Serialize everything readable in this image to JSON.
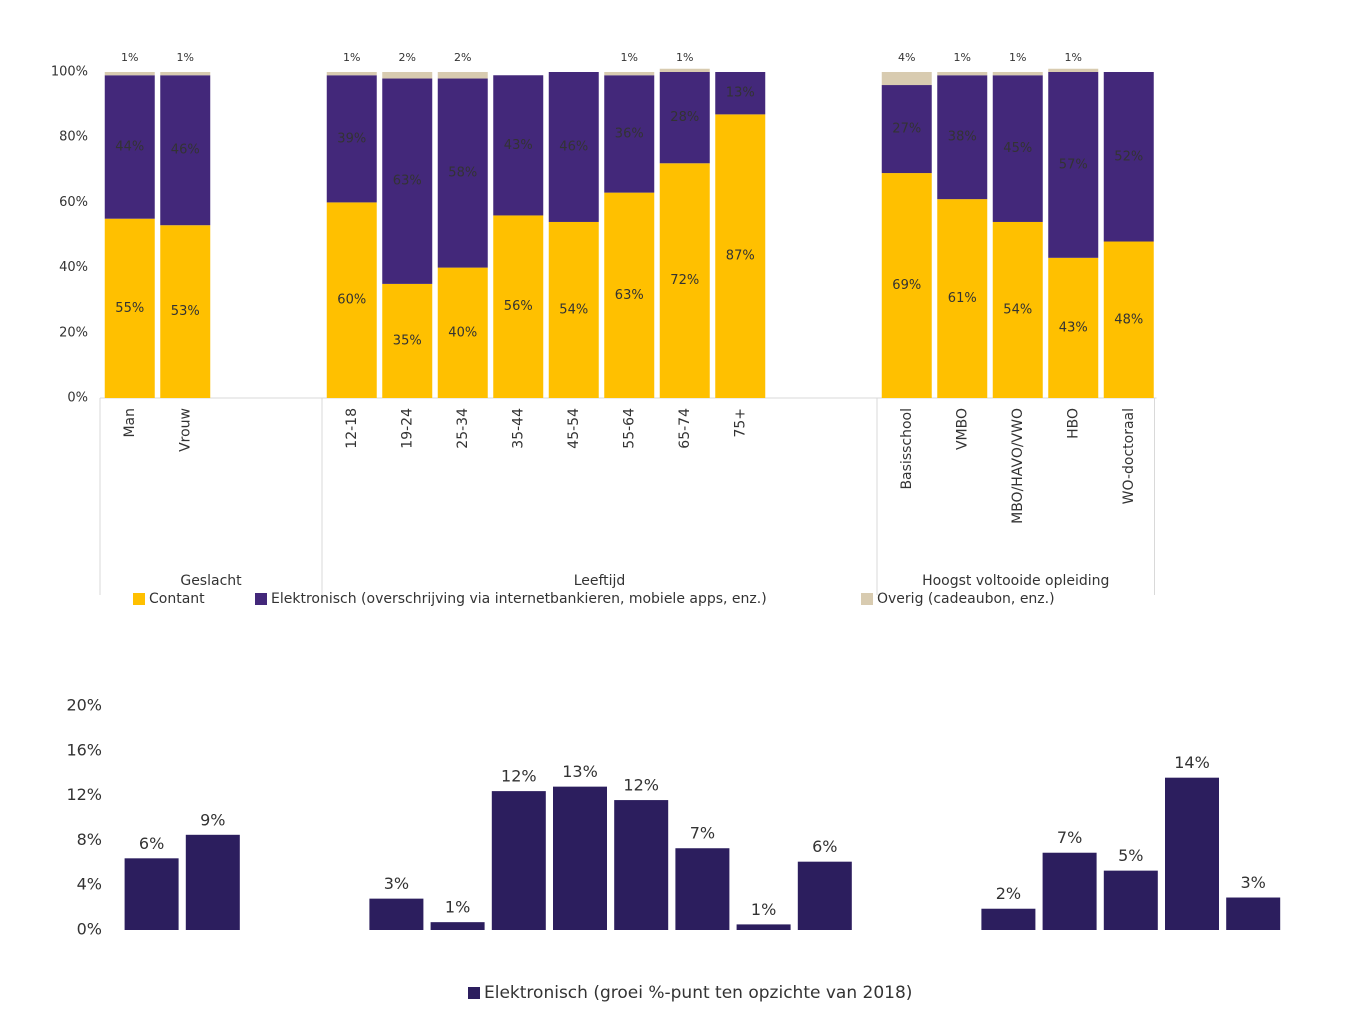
{
  "chart_data": [
    {
      "type": "bar",
      "stacked": true,
      "categories": [
        "Man",
        "Vrouw",
        null,
        null,
        "12-18",
        "19-24",
        "25-34",
        "35-44",
        "45-54",
        "55-64",
        "65-74",
        "75+",
        null,
        null,
        "Basisschool",
        "VMBO",
        "MBO/HAVO/VWO",
        "HBO",
        "WO-doctoraal"
      ],
      "groups": [
        "Geslacht",
        "Leeftijd",
        "Hoogst voltooide opleiding"
      ],
      "series": [
        {
          "name": "Contant",
          "color": "#ffc000",
          "values": [
            55,
            53,
            null,
            null,
            60,
            35,
            40,
            56,
            54,
            63,
            72,
            87,
            null,
            null,
            69,
            61,
            54,
            43,
            48
          ],
          "value_labels": [
            "55%",
            "53%",
            null,
            null,
            "60%",
            "35%",
            "40%",
            "56%",
            "54%",
            "63%",
            "72%",
            "87%",
            null,
            null,
            "69%",
            "61%",
            "54%",
            "43%",
            "48%"
          ]
        },
        {
          "name": "Elektronisch (overschrijving via internetbankieren, mobiele apps, enz.)",
          "color": "#43287a",
          "values": [
            44,
            46,
            null,
            null,
            39,
            63,
            58,
            43,
            46,
            36,
            28,
            13,
            null,
            null,
            27,
            38,
            45,
            57,
            52
          ],
          "value_labels": [
            "44%",
            "46%",
            null,
            null,
            "39%",
            "63%",
            "58%",
            "43%",
            "46%",
            "36%",
            "28%",
            "13%",
            null,
            null,
            "27%",
            "38%",
            "45%",
            "57%",
            "52%"
          ]
        },
        {
          "name": "Overig (cadeaubon, enz.)",
          "color": "#d8cbb0",
          "values": [
            1,
            1,
            null,
            null,
            1,
            2,
            2,
            null,
            null,
            1,
            1,
            null,
            null,
            null,
            4,
            1,
            1,
            1,
            null
          ],
          "value_labels": [
            "1%",
            "1%",
            null,
            null,
            "1%",
            "2%",
            "2%",
            null,
            null,
            "1%",
            "1%",
            null,
            null,
            null,
            "4%",
            "1%",
            "1%",
            "1%",
            null
          ]
        }
      ],
      "ylim": [
        0,
        100
      ],
      "yticks": [
        {
          "value": 0,
          "label": "0%"
        },
        {
          "value": 20,
          "label": "20%"
        },
        {
          "value": 40,
          "label": "40%"
        },
        {
          "value": 60,
          "label": "60%"
        },
        {
          "value": 80,
          "label": "80%"
        },
        {
          "value": 100,
          "label": "100%"
        }
      ],
      "legend": "bottom"
    },
    {
      "type": "bar",
      "stacked": false,
      "categories": [
        null,
        null,
        null,
        null,
        null,
        null,
        null,
        null,
        null,
        null,
        null,
        null,
        null,
        null,
        null,
        null,
        null,
        null,
        null
      ],
      "series": [
        {
          "name": "Elektronisch (groei %-punt ten opzichte van 2018)",
          "color": "#2c1e5e",
          "values": [
            6.4,
            8.5,
            null,
            null,
            2.8,
            0.7,
            12.4,
            12.8,
            11.6,
            7.3,
            0.5,
            6.1,
            null,
            null,
            1.9,
            6.9,
            5.3,
            13.6,
            2.9
          ],
          "value_labels": [
            "6%",
            "9%",
            null,
            null,
            "3%",
            "1%",
            "12%",
            "13%",
            "12%",
            "7%",
            "1%",
            "6%",
            null,
            null,
            "2%",
            "7%",
            "5%",
            "14%",
            "3%"
          ]
        }
      ],
      "ylim": [
        0,
        20
      ],
      "yticks": [
        {
          "value": 0,
          "label": "0%"
        },
        {
          "value": 4,
          "label": "4%"
        },
        {
          "value": 8,
          "label": "8%"
        },
        {
          "value": 12,
          "label": "12%"
        },
        {
          "value": 16,
          "label": "16%"
        },
        {
          "value": 20,
          "label": "20%"
        }
      ],
      "legend": "bottom"
    }
  ]
}
